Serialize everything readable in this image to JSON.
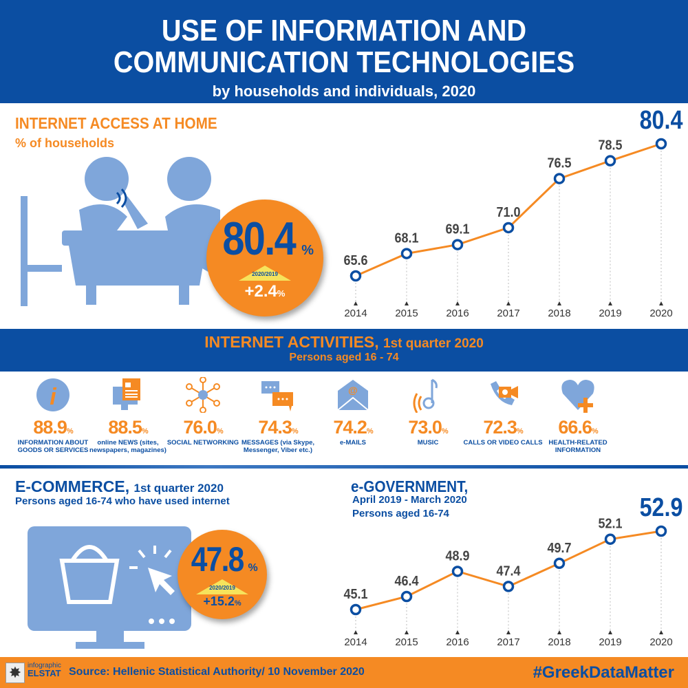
{
  "header": {
    "title_line1": "USE OF INFORMATION AND",
    "title_line2": "COMMUNICATION TECHNOLOGIES",
    "subtitle": "by households and individuals, 2020"
  },
  "internet_access": {
    "title": "INTERNET ACCESS AT HOME",
    "subtitle": "% of households",
    "value": "80.4",
    "unit": "%",
    "compare_label": "2020/2019",
    "change": "+2.4",
    "change_unit": "%"
  },
  "activities": {
    "title": "INTERNET ACTIVITIES,",
    "title_suffix": "1st quarter 2020",
    "subtitle": "Persons aged 16 - 74",
    "unit": "%",
    "items": [
      {
        "value": "88.9",
        "label": "INFORMATION ABOUT GOODS OR SERVICES",
        "icon": "info-icon"
      },
      {
        "value": "88.5",
        "label": "online NEWS (sites, newspapers, magazines)",
        "icon": "news-icon"
      },
      {
        "value": "76.0",
        "label": "SOCIAL NETWORKING",
        "icon": "social-network-icon"
      },
      {
        "value": "74.3",
        "label": "MESSAGES (via Skype, Messenger, Viber etc.)",
        "icon": "messages-icon"
      },
      {
        "value": "74.2",
        "label": "e-MAILS",
        "icon": "email-icon"
      },
      {
        "value": "73.0",
        "label": "MUSIC",
        "icon": "music-icon"
      },
      {
        "value": "72.3",
        "label": "CALLS OR VIDEO CALLS",
        "icon": "video-call-icon"
      },
      {
        "value": "66.6",
        "label": "HEALTH-RELATED INFORMATION",
        "icon": "health-icon"
      }
    ]
  },
  "ecommerce": {
    "title": "E-COMMERCE,",
    "title_suffix": "1st quarter 2020",
    "subtitle": "Persons aged 16-74 who have used internet",
    "value": "47.8",
    "unit": "%",
    "compare_label": "2020/2019",
    "change": "+15.2",
    "change_unit": "%"
  },
  "egov": {
    "title": "e-GOVERNMENT,",
    "subtitle1": "April 2019 - March 2020",
    "subtitle2": "Persons aged 16-74"
  },
  "footer": {
    "logo_line1": "infographic",
    "logo_line2": "ELSTAT",
    "source": "Source: Hellenic Statistical Authority/ 10 November 2020",
    "hashtag": "#GreekDataMatter"
  },
  "colors": {
    "blue": "#0b4ea2",
    "orange": "#f58a23",
    "light_blue": "#7fa6da",
    "yellow": "#f6e35c"
  },
  "chart_data": [
    {
      "type": "line",
      "title": "Internet access at home, % of households",
      "x": [
        "2014",
        "2015",
        "2016",
        "2017",
        "2018",
        "2019",
        "2020"
      ],
      "values": [
        65.6,
        68.1,
        69.1,
        71.0,
        76.5,
        78.5,
        80.4
      ],
      "labels": [
        "65.6",
        "68.1",
        "69.1",
        "71.0",
        "76.5",
        "78.5",
        "80.4"
      ],
      "ylim": [
        65.6,
        80.4
      ],
      "grid": false
    },
    {
      "type": "line",
      "title": "e-Government, persons aged 16-74",
      "x": [
        "2014",
        "2015",
        "2016",
        "2017",
        "2018",
        "2019",
        "2020"
      ],
      "values": [
        45.1,
        46.4,
        48.9,
        47.4,
        49.7,
        52.1,
        52.9
      ],
      "labels": [
        "45.1",
        "46.4",
        "48.9",
        "47.4",
        "49.7",
        "52.1",
        "52.9"
      ],
      "ylim": [
        45.1,
        52.9
      ],
      "grid": false
    }
  ]
}
